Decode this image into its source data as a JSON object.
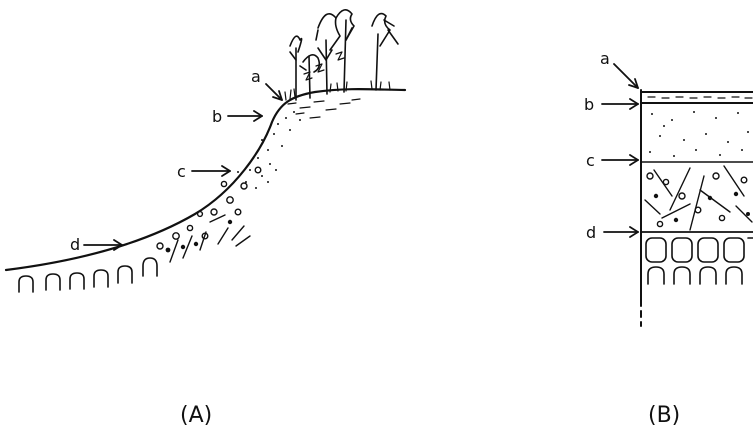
{
  "panels": {
    "A": {
      "caption": "(A)",
      "labels": {
        "a": "a",
        "b": "b",
        "c": "c",
        "d": "d"
      }
    },
    "B": {
      "caption": "(B)",
      "labels": {
        "a": "a",
        "b": "b",
        "c": "c",
        "d": "d"
      }
    }
  }
}
